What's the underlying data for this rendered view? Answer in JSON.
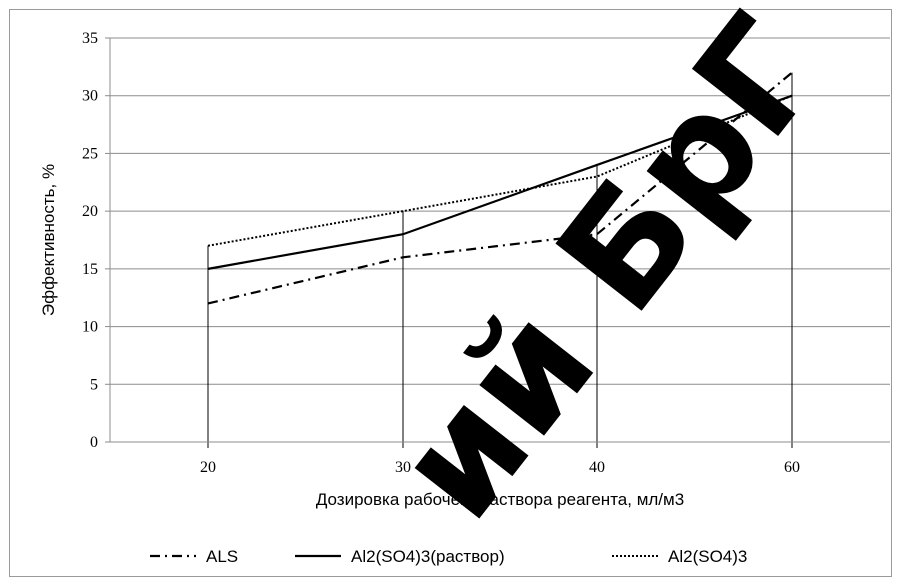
{
  "chart_data": {
    "type": "line",
    "categories": [
      "20",
      "30",
      "40",
      "60"
    ],
    "series": [
      {
        "name": "ALS",
        "values": [
          12,
          16,
          18,
          32
        ],
        "dash": "dash-dot",
        "color": "#000000"
      },
      {
        "name": "Al2(SO4)3(раствор)",
        "values": [
          15,
          18,
          24,
          30
        ],
        "dash": "solid",
        "color": "#000000"
      },
      {
        "name": "Al2(SO4)3",
        "values": [
          17,
          20,
          23,
          30
        ],
        "dash": "dotted",
        "color": "#000000"
      }
    ],
    "xlabel": "Дозировка рабочего раствора реагента, мл/м3",
    "ylabel": "Эффективность, %",
    "ylim": [
      0,
      35
    ],
    "yticks": [
      "0",
      "5",
      "10",
      "15",
      "20",
      "25",
      "30",
      "35"
    ],
    "grid": "horizontal",
    "drop_lines": true,
    "legend_position": "bottom"
  },
  "watermark": {
    "text": "ий БрГ",
    "color": "#000000"
  }
}
